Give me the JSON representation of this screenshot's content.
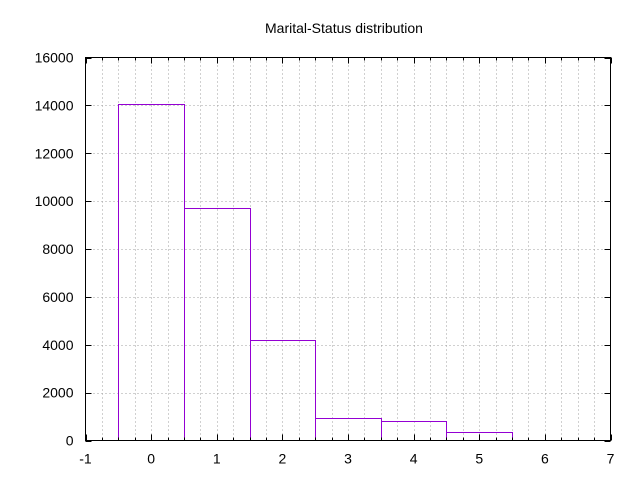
{
  "chart_data": {
    "type": "bar",
    "title": "Marital-Status distribution",
    "xlabel": "",
    "ylabel": "",
    "bar_color": "#9400d3",
    "grid_color": "#a0a0a0",
    "grid": true,
    "xlim": [
      -1,
      7
    ],
    "ylim": [
      0,
      16000
    ],
    "x_ticks": [
      -1,
      0,
      1,
      2,
      3,
      4,
      5,
      6,
      7
    ],
    "x_minor_step": 0.25,
    "y_ticks": [
      0,
      2000,
      4000,
      6000,
      8000,
      10000,
      12000,
      14000,
      16000
    ],
    "bar_width": 1,
    "categories": [
      0,
      1,
      2,
      3,
      4,
      5,
      6
    ],
    "values": [
      14070,
      9700,
      4200,
      950,
      830,
      350,
      40
    ]
  }
}
